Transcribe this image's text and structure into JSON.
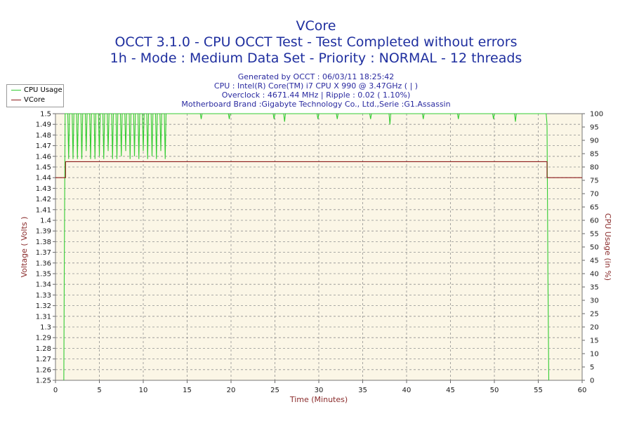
{
  "chart_data": {
    "type": "line",
    "title": "VCore",
    "subtitle_lines": [
      "OCCT 3.1.0 - CPU OCCT Test - Test Completed without errors",
      "1h - Mode : Medium Data Set - Priority : NORMAL - 12 threads"
    ],
    "info_lines": [
      "Generated by OCCT : 06/03/11 18:25:42",
      "CPU : Intel(R) Core(TM) i7 CPU X 990 @ 3.47GHz ( | )",
      "Overclock : 4671.44 MHz | Ripple : 0.02 ( 1.10%)",
      "Motherboard Brand :Gigabyte Technology Co., Ltd.,Serie :G1.Assassin"
    ],
    "xlabel": "Time (Minutes)",
    "ylabel_left": "Voltage ( Volts )",
    "ylabel_right": "CPU Usage (in %)",
    "xlim": [
      0,
      60
    ],
    "ylim_left": [
      1.25,
      1.5
    ],
    "ylim_right": [
      0,
      100
    ],
    "x_ticks": [
      0,
      5,
      10,
      15,
      20,
      25,
      30,
      35,
      40,
      45,
      50,
      55,
      60
    ],
    "y_left_ticks": [
      "1.25",
      "1.26",
      "1.27",
      "1.28",
      "1.29",
      "1.3",
      "1.31",
      "1.32",
      "1.33",
      "1.34",
      "1.35",
      "1.36",
      "1.37",
      "1.38",
      "1.39",
      "1.4",
      "1.41",
      "1.42",
      "1.43",
      "1.44",
      "1.45",
      "1.46",
      "1.47",
      "1.48",
      "1.49",
      "1.5"
    ],
    "y_right_ticks": [
      "0",
      "5",
      "10",
      "15",
      "20",
      "25",
      "30",
      "35",
      "40",
      "45",
      "50",
      "55",
      "60",
      "65",
      "70",
      "75",
      "80",
      "85",
      "90",
      "95",
      "100"
    ],
    "grid": true,
    "legend_position": "top-left",
    "series": [
      {
        "name": "CPU Usage",
        "axis": "right",
        "color": "#33cc33",
        "points": [
          [
            0.95,
            0
          ],
          [
            1.0,
            40
          ],
          [
            1.1,
            100
          ],
          [
            1.4,
            100
          ],
          [
            1.5,
            83
          ],
          [
            1.6,
            100
          ],
          [
            1.9,
            100
          ],
          [
            2.0,
            83
          ],
          [
            2.1,
            100
          ],
          [
            2.4,
            100
          ],
          [
            2.5,
            83
          ],
          [
            2.6,
            100
          ],
          [
            2.9,
            100
          ],
          [
            3.0,
            83
          ],
          [
            3.1,
            100
          ],
          [
            3.4,
            100
          ],
          [
            3.5,
            86
          ],
          [
            3.6,
            100
          ],
          [
            3.9,
            100
          ],
          [
            4.0,
            83
          ],
          [
            4.1,
            100
          ],
          [
            4.4,
            100
          ],
          [
            4.5,
            83
          ],
          [
            4.6,
            100
          ],
          [
            4.9,
            100
          ],
          [
            5.0,
            84
          ],
          [
            5.1,
            100
          ],
          [
            5.4,
            100
          ],
          [
            5.5,
            83
          ],
          [
            5.6,
            100
          ],
          [
            5.9,
            100
          ],
          [
            6.0,
            86
          ],
          [
            6.1,
            100
          ],
          [
            6.4,
            100
          ],
          [
            6.5,
            83
          ],
          [
            6.6,
            100
          ],
          [
            6.9,
            100
          ],
          [
            7.0,
            83
          ],
          [
            7.1,
            100
          ],
          [
            7.4,
            100
          ],
          [
            7.5,
            84
          ],
          [
            7.6,
            100
          ],
          [
            7.9,
            100
          ],
          [
            8.0,
            86
          ],
          [
            8.1,
            100
          ],
          [
            8.4,
            100
          ],
          [
            8.5,
            83
          ],
          [
            8.6,
            100
          ],
          [
            8.9,
            100
          ],
          [
            9.0,
            84
          ],
          [
            9.1,
            100
          ],
          [
            9.4,
            100
          ],
          [
            9.5,
            83
          ],
          [
            9.6,
            100
          ],
          [
            9.9,
            100
          ],
          [
            10.0,
            86
          ],
          [
            10.1,
            100
          ],
          [
            10.4,
            100
          ],
          [
            10.5,
            83
          ],
          [
            10.6,
            100
          ],
          [
            10.9,
            100
          ],
          [
            11.0,
            84
          ],
          [
            11.1,
            100
          ],
          [
            11.4,
            100
          ],
          [
            11.5,
            83
          ],
          [
            11.6,
            100
          ],
          [
            11.9,
            100
          ],
          [
            12.0,
            86
          ],
          [
            12.1,
            100
          ],
          [
            12.4,
            100
          ],
          [
            12.5,
            83
          ],
          [
            12.6,
            100
          ],
          [
            16.5,
            100
          ],
          [
            16.6,
            98
          ],
          [
            16.7,
            100
          ],
          [
            19.7,
            100
          ],
          [
            19.8,
            98
          ],
          [
            19.9,
            100
          ],
          [
            24.8,
            100
          ],
          [
            24.9,
            98
          ],
          [
            25.0,
            100
          ],
          [
            26.0,
            100
          ],
          [
            26.1,
            97
          ],
          [
            26.2,
            100
          ],
          [
            29.8,
            100
          ],
          [
            29.9,
            98
          ],
          [
            30.0,
            100
          ],
          [
            32.0,
            100
          ],
          [
            32.1,
            98
          ],
          [
            32.2,
            100
          ],
          [
            35.8,
            100
          ],
          [
            35.9,
            98
          ],
          [
            36.0,
            100
          ],
          [
            38.0,
            100
          ],
          [
            38.1,
            96
          ],
          [
            38.2,
            100
          ],
          [
            41.8,
            100
          ],
          [
            41.9,
            98
          ],
          [
            42.0,
            100
          ],
          [
            45.8,
            100
          ],
          [
            45.9,
            98
          ],
          [
            46.0,
            100
          ],
          [
            49.8,
            100
          ],
          [
            49.9,
            98
          ],
          [
            50.0,
            100
          ],
          [
            52.3,
            100
          ],
          [
            52.4,
            97
          ],
          [
            52.5,
            100
          ],
          [
            55.9,
            100
          ],
          [
            56.0,
            96
          ],
          [
            56.1,
            40
          ],
          [
            56.2,
            0
          ]
        ]
      },
      {
        "name": "VCore",
        "axis": "left",
        "color": "#8b1a1a",
        "points": [
          [
            0,
            1.44
          ],
          [
            1.15,
            1.44
          ],
          [
            1.15,
            1.455
          ],
          [
            56.0,
            1.455
          ],
          [
            56.0,
            1.44
          ],
          [
            60,
            1.44
          ]
        ]
      }
    ]
  }
}
